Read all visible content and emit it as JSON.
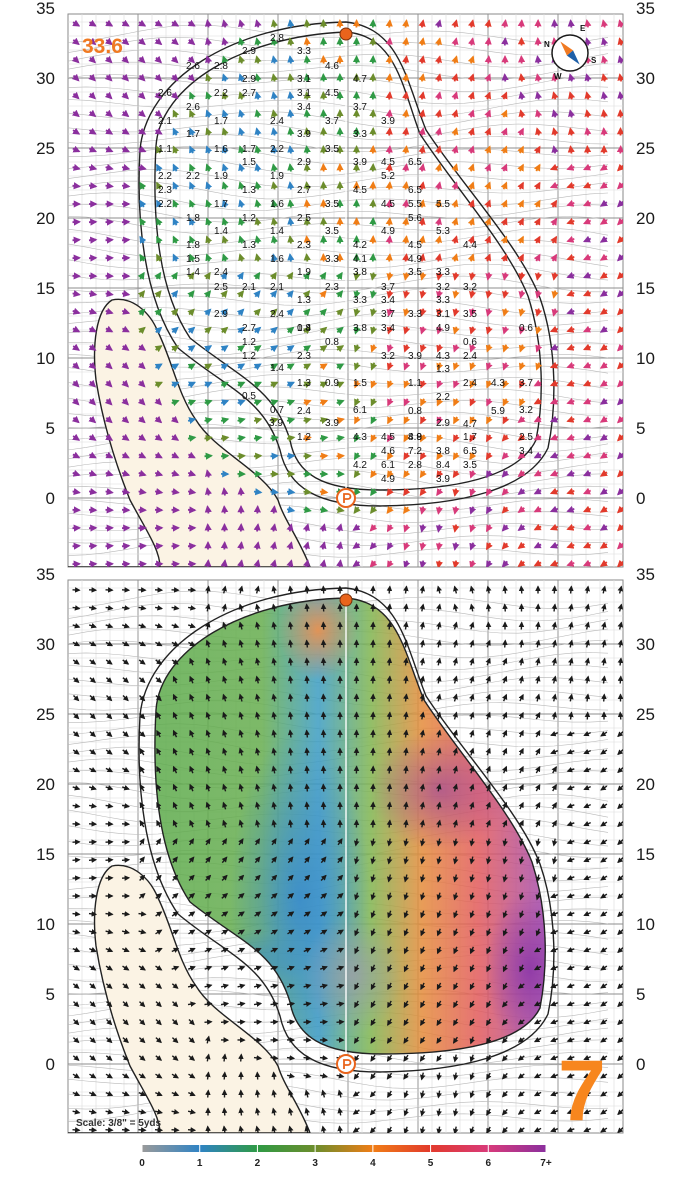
{
  "distance_label": "33.6",
  "hole_number": "7",
  "scale_label": "Scale: 3/8\" = 5yds",
  "y_axis_ticks": [
    "35",
    "30",
    "25",
    "20",
    "15",
    "10",
    "5",
    "0"
  ],
  "legend": {
    "labels": [
      "0",
      "1",
      "2",
      "3",
      "4",
      "5",
      "6",
      "7+"
    ],
    "colors": [
      "#9a9a9a",
      "#2f83c4",
      "#2f9a45",
      "#6c8d2c",
      "#f07d16",
      "#e23a2c",
      "#d83a7a",
      "#8b2f9e"
    ]
  },
  "icons": {
    "compass": "compass-icon",
    "flag": "flag-pin-icon",
    "tee": "player-position-icon"
  },
  "compass_labels": {
    "n": "N",
    "e": "E",
    "s": "S",
    "w": "W"
  },
  "slope_values": [
    "2.8",
    "2.9",
    "3.3",
    "2.8",
    "2.6",
    "2.9",
    "3.1",
    "4.6",
    "4.7",
    "2.6",
    "2.6",
    "2.2",
    "2.7",
    "3.1",
    "4.5",
    "3.7",
    "2.1",
    "1.7",
    "1.7",
    "2.4",
    "3.4",
    "3.7",
    "3.9",
    "1.1",
    "1.6",
    "1.7",
    "2.2",
    "3.9",
    "3.3",
    "2.2",
    "1.9",
    "1.5",
    "2.9",
    "3.5",
    "4.5",
    "6.5",
    "2.2",
    "2.3",
    "1.3",
    "1.9",
    "2.7",
    "3.9",
    "5.2",
    "6.5",
    "2.2",
    "1.8",
    "1.7",
    "1.6",
    "3.5",
    "4.5",
    "5.5",
    "5.5",
    "1.8",
    "1.4",
    "1.2",
    "2.5",
    "4.5",
    "5.6",
    "1.5",
    "1.3",
    "1.4",
    "2.3",
    "3.5",
    "4.9",
    "5.3",
    "1.4",
    "2.4",
    "1.6",
    "3.3",
    "4.2",
    "4.5",
    "4.4",
    "2.5",
    "2.1",
    "1.9",
    "4.1",
    "4.9",
    "3.3",
    "2.9",
    "2.1",
    "1.3",
    "3.8",
    "3.5",
    "3.2",
    "2.7",
    "2.4",
    "1.4",
    "2.3",
    "3.7",
    "3.3",
    "3.2",
    "1.2",
    "2.3",
    "0.8",
    "3.3",
    "3.4",
    "3.1",
    "1.2",
    "1.4",
    "1.3",
    "3.7",
    "3.3",
    "3.5",
    "0.8",
    "0.9",
    "0.7",
    "2.4",
    "3.8",
    "3.4",
    "4.9",
    "0.6",
    "0.5",
    "1.5",
    "3.2",
    "3.9",
    "4.3",
    "1.2",
    "0.8",
    "0.6",
    "3.9",
    "3.9",
    "6.1",
    "1.1",
    "2.4",
    "4.3",
    "4.5",
    "4.8",
    "1.3",
    "3.7",
    "4.2",
    "6.1",
    "7.2",
    "2.2",
    "2.4",
    "3.2",
    "4.9",
    "8.9",
    "2.9",
    "1.7",
    "3.8",
    "6.5",
    "2.5",
    "2.8",
    "3.9",
    "4.6",
    "8.4",
    "3.5",
    "3.4",
    "4.7",
    "5.9",
    "4.3"
  ]
}
